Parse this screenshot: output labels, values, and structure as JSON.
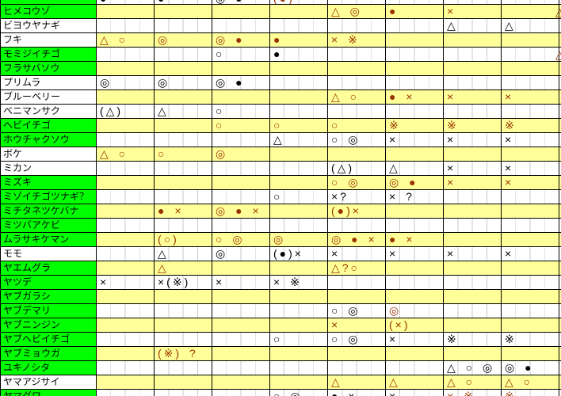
{
  "table": {
    "description_colors": {
      "name_highlight_green": "#00FF00",
      "row_stripe_yellow": "#FFFF99",
      "symbol_brown": "#993300",
      "symbol_black": "#000000",
      "grid_light": "#C9C9C9",
      "grid_dark": "#000000"
    },
    "columns": 8,
    "sub_cells_per_column": 4,
    "rows": [
      {
        "name": "",
        "nameBg": "green",
        "stripe": "white",
        "clip": "top",
        "cells": [
          {
            "c": 1,
            "t": "●",
            "k": "black"
          },
          {
            "c": 2,
            "t": "●",
            "k": "black"
          },
          {
            "c": 3,
            "t": "◎ ●",
            "k": "black"
          },
          {
            "c": 4,
            "t": "(●)",
            "k": "brown"
          }
        ]
      },
      {
        "name": "ヒメコウゾ",
        "nameBg": "green",
        "stripe": "yellow",
        "cells": [
          {
            "c": 5,
            "t": "△ ◎",
            "k": "brown"
          },
          {
            "c": 6,
            "t": "●",
            "k": "brown"
          },
          {
            "c": 7,
            "t": "×",
            "k": "brown"
          }
        ]
      },
      {
        "name": "ビヨウヤナギ",
        "nameBg": "white",
        "stripe": "white",
        "cells": [
          {
            "c": 7,
            "t": "△",
            "k": "black"
          },
          {
            "c": 8,
            "t": "△",
            "k": "black"
          }
        ]
      },
      {
        "name": "フキ",
        "nameBg": "white",
        "stripe": "yellow",
        "cells": [
          {
            "c": 1,
            "t": "△ ○",
            "k": "brown"
          },
          {
            "c": 2,
            "t": "◎",
            "k": "brown"
          },
          {
            "c": 3,
            "t": "◎ ●",
            "k": "brown"
          },
          {
            "c": 4,
            "t": "●",
            "k": "brown"
          },
          {
            "c": 5,
            "t": "× ※",
            "k": "brown"
          }
        ]
      },
      {
        "name": "モミジイチゴ",
        "nameBg": "green",
        "stripe": "white",
        "cells": [
          {
            "c": 3,
            "t": "○",
            "k": "black"
          },
          {
            "c": 4,
            "t": "●",
            "k": "black"
          }
        ]
      },
      {
        "name": "フラサバソウ",
        "nameBg": "green",
        "stripe": "yellow",
        "cells": []
      },
      {
        "name": "プリムラ",
        "nameBg": "white",
        "stripe": "white",
        "cells": [
          {
            "c": 1,
            "t": "◎",
            "k": "black"
          },
          {
            "c": 2,
            "t": "◎",
            "k": "black"
          },
          {
            "c": 3,
            "t": "◎ ●",
            "k": "black"
          }
        ]
      },
      {
        "name": "ブルーベリー",
        "nameBg": "white",
        "stripe": "yellow",
        "cells": [
          {
            "c": 5,
            "t": "△ ○",
            "k": "brown"
          },
          {
            "c": 6,
            "t": "● ×",
            "k": "brown"
          },
          {
            "c": 7,
            "t": "×",
            "k": "brown"
          },
          {
            "c": 8,
            "t": "×",
            "k": "brown"
          }
        ]
      },
      {
        "name": "ベニマンサク",
        "nameBg": "white",
        "stripe": "white",
        "cells": [
          {
            "c": 1,
            "t": "(△)",
            "k": "black"
          },
          {
            "c": 2,
            "t": "△",
            "k": "black"
          },
          {
            "c": 3,
            "t": "○",
            "k": "black"
          }
        ]
      },
      {
        "name": "ヘビイチゴ",
        "nameBg": "green",
        "stripe": "yellow",
        "cells": [
          {
            "c": 3,
            "t": "○",
            "k": "brown"
          },
          {
            "c": 4,
            "t": "○",
            "k": "brown"
          },
          {
            "c": 5,
            "t": "○",
            "k": "brown"
          },
          {
            "c": 6,
            "t": "※",
            "k": "brown"
          },
          {
            "c": 7,
            "t": "※",
            "k": "brown"
          },
          {
            "c": 8,
            "t": "※",
            "k": "brown"
          }
        ]
      },
      {
        "name": "ホウチャクソウ",
        "nameBg": "green",
        "stripe": "white",
        "cells": [
          {
            "c": 4,
            "t": "△",
            "k": "black"
          },
          {
            "c": 5,
            "t": "○ ◎",
            "k": "black"
          },
          {
            "c": 6,
            "t": "×",
            "k": "black"
          },
          {
            "c": 7,
            "t": "×",
            "k": "black"
          },
          {
            "c": 8,
            "t": "×",
            "k": "black"
          }
        ]
      },
      {
        "name": "ボケ",
        "nameBg": "white",
        "stripe": "yellow",
        "cells": [
          {
            "c": 1,
            "t": "△ ○",
            "k": "brown"
          },
          {
            "c": 2,
            "t": "○",
            "k": "brown"
          },
          {
            "c": 3,
            "t": "◎",
            "k": "brown"
          }
        ]
      },
      {
        "name": "ミカン",
        "nameBg": "white",
        "stripe": "white",
        "cells": [
          {
            "c": 5,
            "t": "(△)",
            "k": "black"
          },
          {
            "c": 6,
            "t": "△",
            "k": "black"
          },
          {
            "c": 7,
            "t": "×",
            "k": "black"
          },
          {
            "c": 8,
            "t": "×",
            "k": "black"
          }
        ]
      },
      {
        "name": "ミズキ",
        "nameBg": "green",
        "stripe": "yellow",
        "cells": [
          {
            "c": 5,
            "t": "○ ◎",
            "k": "brown"
          },
          {
            "c": 6,
            "t": "◎ ●",
            "k": "brown"
          },
          {
            "c": 7,
            "t": "×",
            "k": "brown"
          },
          {
            "c": 8,
            "t": "×",
            "k": "brown"
          }
        ]
      },
      {
        "name": "ミゾイチゴツナギ？",
        "nameBg": "green",
        "stripe": "white",
        "cells": [
          {
            "c": 4,
            "t": "○",
            "k": "black"
          },
          {
            "c": 5,
            "t": "×?",
            "k": "black"
          },
          {
            "c": 6,
            "t": "× ?",
            "k": "black"
          }
        ]
      },
      {
        "name": "ミチタネツケバナ",
        "nameBg": "green",
        "stripe": "yellow",
        "cells": [
          {
            "c": 2,
            "t": "● ×",
            "k": "brown"
          },
          {
            "c": 3,
            "t": "◎ ● ×",
            "k": "brown"
          },
          {
            "c": 5,
            "t": "(●)×",
            "k": "brown"
          }
        ]
      },
      {
        "name": "ミツバアケビ",
        "nameBg": "green",
        "stripe": "white",
        "cells": []
      },
      {
        "name": "ムラサキケマン",
        "nameBg": "green",
        "stripe": "yellow",
        "cells": [
          {
            "c": 2,
            "t": "(○)",
            "k": "brown"
          },
          {
            "c": 3,
            "t": "○ ◎",
            "k": "brown"
          },
          {
            "c": 4,
            "t": "◎",
            "k": "brown"
          },
          {
            "c": 5,
            "t": "◎ ● ×",
            "k": "brown"
          },
          {
            "c": 6,
            "t": "● ×",
            "k": "brown"
          }
        ]
      },
      {
        "name": "モモ",
        "nameBg": "white",
        "stripe": "white",
        "cells": [
          {
            "c": 2,
            "t": "△",
            "k": "black"
          },
          {
            "c": 3,
            "t": "◎",
            "k": "black"
          },
          {
            "c": 4,
            "t": "(●)×",
            "k": "black"
          },
          {
            "c": 5,
            "t": "×",
            "k": "black"
          },
          {
            "c": 6,
            "t": "×",
            "k": "black"
          },
          {
            "c": 7,
            "t": "×",
            "k": "black"
          },
          {
            "c": 8,
            "t": "×",
            "k": "black"
          }
        ]
      },
      {
        "name": "ヤエムグラ",
        "nameBg": "green",
        "stripe": "yellow",
        "cells": [
          {
            "c": 2,
            "t": "△",
            "k": "brown"
          },
          {
            "c": 5,
            "t": "△?○",
            "k": "brown"
          }
        ]
      },
      {
        "name": "ヤツデ",
        "nameBg": "green",
        "stripe": "white",
        "cells": [
          {
            "c": 1,
            "t": "×",
            "k": "black"
          },
          {
            "c": 2,
            "t": "×(※)",
            "k": "black"
          },
          {
            "c": 3,
            "t": "×",
            "k": "black"
          },
          {
            "c": 4,
            "t": "× ※",
            "k": "black"
          }
        ]
      },
      {
        "name": "ヤブガラシ",
        "nameBg": "green",
        "stripe": "yellow",
        "cells": []
      },
      {
        "name": "ヤブデマリ",
        "nameBg": "green",
        "stripe": "white",
        "cells": [
          {
            "c": 5,
            "t": "○ ◎",
            "k": "black"
          },
          {
            "c": 6,
            "t": "◎",
            "k": "brown"
          }
        ]
      },
      {
        "name": "ヤブニンジン",
        "nameBg": "green",
        "stripe": "yellow",
        "cells": [
          {
            "c": 5,
            "t": "×",
            "k": "brown"
          },
          {
            "c": 6,
            "t": "(×)",
            "k": "brown"
          }
        ]
      },
      {
        "name": "ヤブヘビイチゴ",
        "nameBg": "green",
        "stripe": "white",
        "cells": [
          {
            "c": 4,
            "t": "○",
            "k": "black"
          },
          {
            "c": 5,
            "t": "○ ◎",
            "k": "black"
          },
          {
            "c": 6,
            "t": "×",
            "k": "black"
          },
          {
            "c": 7,
            "t": "※",
            "k": "black"
          },
          {
            "c": 8,
            "t": "※",
            "k": "black"
          }
        ]
      },
      {
        "name": "ヤブミョウガ",
        "nameBg": "green",
        "stripe": "yellow",
        "cells": [
          {
            "c": 2,
            "t": "(※) ?",
            "k": "brown"
          }
        ]
      },
      {
        "name": "ユキノシタ",
        "nameBg": "green",
        "stripe": "white",
        "cells": [
          {
            "c": 7,
            "t": "△ ○ ◎",
            "k": "black"
          },
          {
            "c": 8,
            "t": "◎ ●",
            "k": "black"
          }
        ]
      },
      {
        "name": "ヤマアジサイ",
        "nameBg": "white",
        "stripe": "yellow",
        "cells": [
          {
            "c": 5,
            "t": "△",
            "k": "brown"
          },
          {
            "c": 6,
            "t": "△",
            "k": "brown"
          },
          {
            "c": 7,
            "t": "△ ○",
            "k": "brown"
          },
          {
            "c": 8,
            "t": "△ ○",
            "k": "brown"
          }
        ]
      },
      {
        "name": "ヤマグワ",
        "nameBg": "green",
        "stripe": "white",
        "clip": "bottom",
        "cells": [
          {
            "c": 4,
            "t": "○ ◎",
            "k": "black"
          },
          {
            "c": 5,
            "t": "● ×",
            "k": "black"
          },
          {
            "c": 6,
            "t": "×",
            "k": "black"
          },
          {
            "c": 7,
            "t": "× ※",
            "k": "brown"
          },
          {
            "c": 8,
            "t": "※",
            "k": "brown"
          }
        ]
      }
    ],
    "edge_marks": [
      {
        "row": 1,
        "t": "△",
        "k": "brown"
      },
      {
        "row": 4,
        "t": "△",
        "k": "brown"
      }
    ]
  }
}
